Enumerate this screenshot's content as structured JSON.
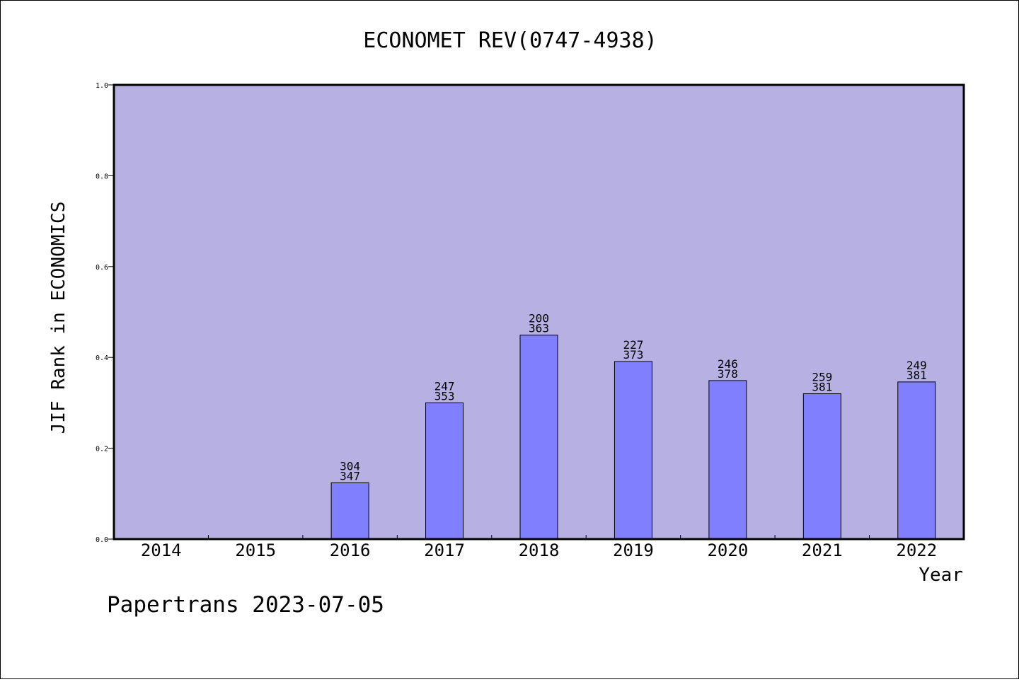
{
  "chart_data": {
    "type": "bar",
    "title": "ECONOMET REV(0747-4938)",
    "xlabel": "Year",
    "ylabel": "JIF Rank in ECONOMICS",
    "categories": [
      "2014",
      "2015",
      "2016",
      "2017",
      "2018",
      "2019",
      "2020",
      "2021",
      "2022"
    ],
    "values": [
      null,
      null,
      0.124,
      0.3,
      0.449,
      0.391,
      0.349,
      0.32,
      0.346
    ],
    "rank_labels": [
      "",
      "",
      "304",
      "247",
      "200",
      "227",
      "246",
      "259",
      "249"
    ],
    "total_labels": [
      "",
      "",
      "347",
      "353",
      "363",
      "373",
      "378",
      "381",
      "381"
    ],
    "ylim": [
      0,
      1.0
    ],
    "yticks": [
      "0.0",
      "0.2",
      "0.4",
      "0.6",
      "0.8",
      "1.0"
    ],
    "grid": false,
    "legend": "none",
    "colors": {
      "plot_background": "#b6b0e3",
      "bar_fill": "#8080ff",
      "bar_stroke": "#000000"
    }
  },
  "footer": "Papertrans 2023-07-05"
}
